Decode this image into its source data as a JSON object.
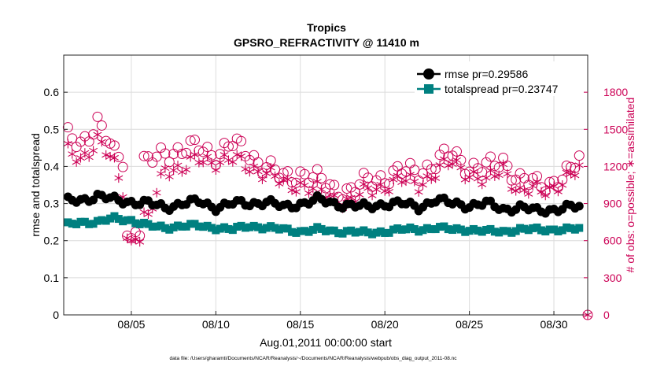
{
  "chart_data": {
    "type": "line",
    "title": "Tropics",
    "subtitle": "GPSRO_REFRACTIVITY @ 11410 m",
    "xlabel": "Aug.01,2011 00:00:00 start",
    "ylabel_left": "rmse and totalspread",
    "ylabel_right": "# of obs: o=possible; ∗=assimilated",
    "footnote": "data file: /Users/gharamti/Documents/NCAR/Reanalysis/~/Documents/NCAR/Reanalysis/webpub/obs_diag_output_2011-08.nc",
    "x_ticks": [
      "08/05",
      "08/10",
      "08/15",
      "08/20",
      "08/25",
      "08/30"
    ],
    "x_tick_days": [
      5,
      10,
      15,
      20,
      25,
      30
    ],
    "xlim_days": [
      1.0,
      32.0
    ],
    "ylim_left": [
      0,
      0.7
    ],
    "y_ticks_left": [
      "0",
      "0.1",
      "0.2",
      "0.3",
      "0.4",
      "0.5",
      "0.6"
    ],
    "ylim_right": [
      0,
      2100
    ],
    "y_ticks_right": [
      "0",
      "300",
      "600",
      "900",
      "1200",
      "1500",
      "1800"
    ],
    "legend_position": "top-right",
    "grid": true,
    "colors": {
      "rmse": "#000000",
      "totalspread": "#008080",
      "obs": "#cc0055"
    },
    "legend": [
      {
        "series": "rmse",
        "label": "rmse pr=0.29586"
      },
      {
        "series": "totalspread",
        "label": "totalspread pr=0.23747"
      }
    ],
    "rmse_daily": [
      0.305,
      0.31,
      0.32,
      0.31,
      0.305,
      0.3,
      0.29,
      0.3,
      0.305,
      0.29,
      0.3,
      0.3,
      0.305,
      0.29,
      0.3,
      0.31,
      0.3,
      0.295,
      0.29,
      0.3,
      0.3,
      0.29,
      0.31,
      0.3,
      0.295,
      0.3,
      0.285,
      0.29,
      0.28,
      0.285,
      0.29,
      0.29
    ],
    "spread_daily": [
      0.24,
      0.25,
      0.25,
      0.26,
      0.255,
      0.24,
      0.235,
      0.24,
      0.24,
      0.235,
      0.23,
      0.24,
      0.235,
      0.23,
      0.225,
      0.23,
      0.225,
      0.225,
      0.22,
      0.225,
      0.23,
      0.23,
      0.235,
      0.23,
      0.23,
      0.225,
      0.225,
      0.23,
      0.23,
      0.23,
      0.23,
      0.235
    ],
    "possible_daily": [
      1440,
      1390,
      1560,
      1290,
      1240,
      1220,
      1320,
      1330,
      1350,
      1300,
      1380,
      1300,
      1200,
      1100,
      1150,
      1090,
      1020,
      1000,
      1080,
      1120,
      1150,
      1160,
      1230,
      1300,
      1200,
      1180,
      1250,
      1090,
      1050,
      1080,
      1150,
      1380
    ],
    "assimilated_daily": [
      1320,
      1260,
      1420,
      1200,
      830,
      760,
      1200,
      1180,
      1250,
      1250,
      1250,
      1200,
      1150,
      1050,
      1060,
      1000,
      940,
      920,
      1000,
      1050,
      1080,
      1060,
      1150,
      1230,
      1150,
      1060,
      1200,
      980,
      1010,
      1040,
      1100,
      1280
    ],
    "points_per_day": 4,
    "low_obs_dip": {
      "day_range": [
        4.75,
        5.5
      ],
      "possible": [
        640,
        620,
        670,
        640
      ],
      "assimilated": [
        620,
        600,
        610,
        590
      ]
    },
    "final_point": {
      "day": 32.0,
      "possible": 0,
      "assimilated": 0
    }
  }
}
